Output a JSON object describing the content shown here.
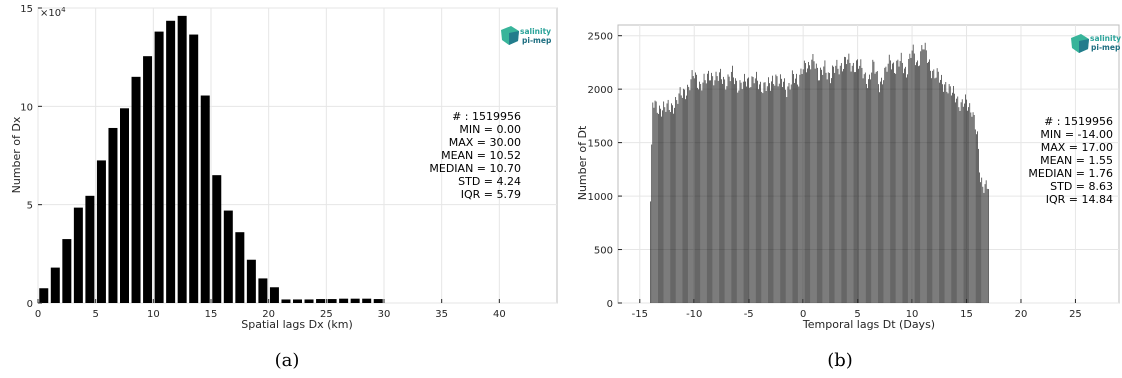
{
  "chart_data": [
    {
      "type": "bar",
      "caption": "(a)",
      "xlabel": "Spatial lags Dx (km)",
      "ylabel": "Number of Dx",
      "y_multiplier_label": "×10",
      "y_multiplier_exp": "4",
      "xlim": [
        0,
        45
      ],
      "ylim": [
        0,
        15
      ],
      "xticks": [
        0,
        5,
        10,
        15,
        20,
        25,
        30,
        35,
        40
      ],
      "yticks": [
        0,
        5,
        10,
        15
      ],
      "grid": true,
      "bar_color": "#000000",
      "x": [
        1,
        2,
        3,
        4,
        5,
        6,
        7,
        8,
        9,
        10,
        11,
        12,
        13,
        14,
        15,
        16,
        17,
        18,
        19,
        20,
        21,
        22,
        23,
        24,
        25,
        26,
        27,
        28,
        29,
        30
      ],
      "values": [
        0.75,
        1.8,
        3.25,
        4.85,
        5.45,
        7.25,
        8.9,
        9.9,
        11.5,
        12.55,
        13.8,
        14.35,
        14.6,
        13.65,
        10.55,
        6.5,
        4.7,
        3.6,
        2.2,
        1.25,
        0.8,
        0.18,
        0.18,
        0.18,
        0.2,
        0.2,
        0.22,
        0.22,
        0.22,
        0.2
      ],
      "stats": [
        "# : 1519956",
        "MIN = 0.00",
        "MAX =  30.00",
        "MEAN = 10.52",
        "MEDIAN = 10.70",
        "STD = 4.24",
        "IQR = 5.79"
      ],
      "logo": [
        "salinity",
        "pi-mep"
      ]
    },
    {
      "type": "bar",
      "caption": "(b)",
      "xlabel": "Temporal lags Dt (Days)",
      "ylabel": "Number of Dt",
      "xlim": [
        -17,
        29
      ],
      "ylim": [
        0,
        2600
      ],
      "xticks": [
        -15,
        -10,
        -5,
        0,
        5,
        10,
        15,
        20,
        25
      ],
      "yticks": [
        0,
        500,
        1000,
        1500,
        2000,
        2500
      ],
      "grid": true,
      "bar_color": "#000000",
      "bin_start": -14,
      "bin_width": 0.1,
      "envelope_x": [
        -14.0,
        -13.8,
        -13.5,
        -13.0,
        -12.5,
        -12.0,
        -11.5,
        -11.0,
        -10.5,
        -10.0,
        -9.5,
        -9.0,
        -8.5,
        -8.0,
        -7.5,
        -7.0,
        -6.5,
        -6.0,
        -5.5,
        -5.0,
        -4.5,
        -4.0,
        -3.5,
        -3.0,
        -2.5,
        -2.0,
        -1.5,
        -1.0,
        -0.5,
        0.0,
        0.5,
        1.0,
        1.5,
        2.0,
        2.5,
        3.0,
        3.5,
        4.0,
        4.5,
        5.0,
        5.5,
        6.0,
        6.5,
        7.0,
        7.5,
        8.0,
        8.5,
        9.0,
        9.5,
        10.0,
        10.5,
        11.0,
        11.5,
        12.0,
        12.5,
        13.0,
        13.5,
        14.0,
        14.5,
        15.0,
        15.5,
        16.0,
        16.3,
        16.6,
        17.0
      ],
      "envelope_y": [
        950,
        1860,
        1820,
        1830,
        1810,
        1850,
        1900,
        1970,
        2020,
        2130,
        2050,
        2060,
        2150,
        2090,
        2120,
        2070,
        2130,
        2050,
        2040,
        2080,
        2110,
        2010,
        2060,
        2010,
        2130,
        2060,
        1990,
        2130,
        2030,
        2260,
        2160,
        2320,
        2090,
        2210,
        2120,
        2190,
        2230,
        2260,
        2220,
        2240,
        2150,
        2080,
        2210,
        2060,
        2120,
        2290,
        2190,
        2260,
        2170,
        2350,
        2240,
        2400,
        2260,
        2150,
        2090,
        2060,
        1960,
        1960,
        1830,
        1880,
        1820,
        1520,
        1150,
        1120,
        1080
      ],
      "stats": [
        "# : 1519956",
        "MIN = -14.00",
        "MAX =  17.00",
        "MEAN = 1.55",
        "MEDIAN = 1.76",
        "STD = 8.63",
        "IQR = 14.84"
      ],
      "logo": [
        "salinity",
        "pi-mep"
      ]
    }
  ]
}
